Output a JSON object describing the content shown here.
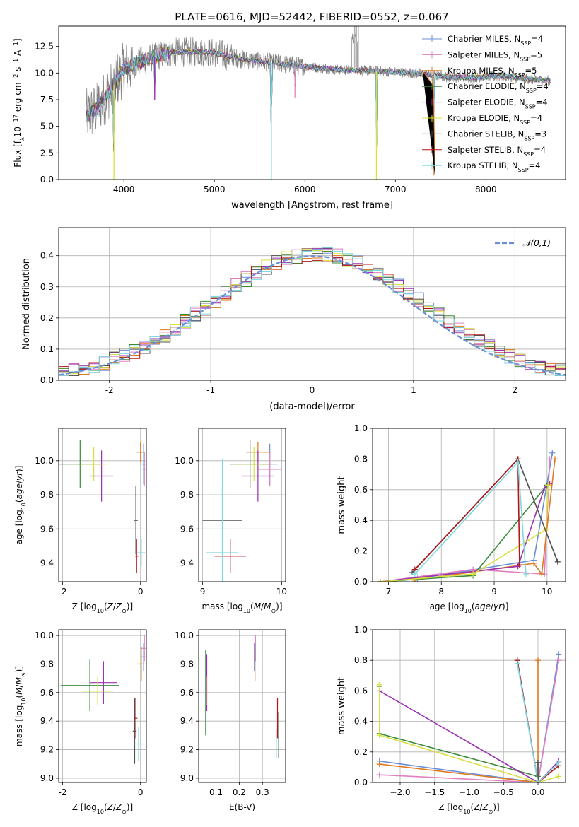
{
  "figure_title": "PLATE=0616, MJD=52442, FIBERID=0552, z=0.067",
  "series_colors": [
    "#6a8fd8",
    "#e080c0",
    "#e07a20",
    "#3a8a3a",
    "#9a30b0",
    "#d8e040",
    "#505050",
    "#b01818",
    "#80d8e0"
  ],
  "chart_data": [
    {
      "type": "line",
      "id": "spectrum",
      "xlabel": "wavelength [Angstrom, rest frame]",
      "ylabel": "Flux [f_λ10^-17 erg cm^-2 s^-1 A^-1]",
      "xlim": [
        3280,
        8880
      ],
      "ylim": [
        0,
        14.4
      ],
      "xticks": [
        4000,
        5000,
        6000,
        7000,
        8000
      ],
      "yticks": [
        0.0,
        2.5,
        5.0,
        7.5,
        10.0,
        12.5
      ],
      "ytick_labels": [
        "0.0",
        "2.5",
        "5.0",
        "7.5",
        "10.0",
        "12.5"
      ],
      "grid": false,
      "legend_position": "top-right",
      "legend": [
        "Chabrier MILES, N_SSP=4",
        "Salpeter MILES, N_SSP=5",
        "Kroupa MILES, N_SSP=5",
        "Chabrier ELODIE, N_SSP=4",
        "Salpeter ELODIE, N_SSP=4",
        "Kroupa ELODIE, N_SSP=4",
        "Chabrier STELIB, N_SSP=3",
        "Salpeter STELIB, N_SSP=4",
        "Kroupa STELIB, N_SSP=4"
      ],
      "continuum": {
        "x": [
          3580,
          3700,
          3800,
          3900,
          4000,
          4100,
          4300,
          4500,
          4800,
          5000,
          5300,
          5600,
          6000,
          6400,
          6800,
          7200,
          7600,
          7900,
          8200,
          8500,
          8700
        ],
        "y": [
          6.0,
          6.6,
          7.8,
          9.0,
          10.4,
          10.8,
          11.4,
          11.9,
          12.0,
          11.9,
          11.3,
          11.0,
          10.6,
          10.3,
          10.2,
          10.0,
          9.6,
          9.6,
          9.7,
          9.4,
          9.3
        ]
      },
      "absorption_lines": [
        {
          "x": 3890,
          "depth": 10.0
        },
        {
          "x": 4340,
          "depth": 4.0
        },
        {
          "x": 5630,
          "depth": 11.0
        },
        {
          "x": 5890,
          "depth": 3.0
        },
        {
          "x": 6790,
          "depth": 10.2
        },
        {
          "x": 7420,
          "depth": 9.4
        }
      ]
    },
    {
      "type": "histogram",
      "id": "residuals",
      "xlabel": "(data-model)/error",
      "ylabel": "Normed distribution",
      "xlim": [
        -2.5,
        2.5
      ],
      "ylim": [
        0,
        0.49
      ],
      "xticks": [
        -2,
        -1,
        0,
        1,
        2
      ],
      "yticks": [
        0.0,
        0.1,
        0.2,
        0.3,
        0.4
      ],
      "ytick_labels": [
        "0.0",
        "0.1",
        "0.2",
        "0.3",
        "0.4"
      ],
      "grid": true,
      "legend_position": "top-right",
      "gaussian_label": "𝒩(0,1)",
      "bin_width": 0.1
    },
    {
      "type": "scatter",
      "id": "age_vs_Z",
      "xlabel": "Z [log10(Z/Z⊙)]",
      "ylabel": "age [log10(age/yr)]",
      "xlim": [
        -2.1,
        0.15
      ],
      "ylim": [
        9.29,
        10.19
      ],
      "xticks": [
        -2,
        0
      ],
      "yticks": [
        9.4,
        9.6,
        9.8,
        10.0
      ],
      "ytick_labels": [
        "9.4",
        "9.6",
        "9.8",
        "10.0"
      ],
      "grid": true,
      "points": [
        {
          "s": 0,
          "x": 0.08,
          "y": 9.98,
          "ex": 0.05,
          "ey": 0.12
        },
        {
          "s": 1,
          "x": 0.1,
          "y": 9.95,
          "ex": 0.05,
          "ey": 0.1
        },
        {
          "s": 2,
          "x": 0.0,
          "y": 10.05,
          "ex": 0.1,
          "ey": 0.06
        },
        {
          "s": 3,
          "x": -1.55,
          "y": 9.98,
          "ex": 0.55,
          "ey": 0.14
        },
        {
          "s": 4,
          "x": -1.0,
          "y": 9.91,
          "ex": 0.3,
          "ey": 0.15
        },
        {
          "s": 5,
          "x": -1.2,
          "y": 9.98,
          "ex": 0.35,
          "ey": 0.1
        },
        {
          "s": 6,
          "x": -0.12,
          "y": 9.65,
          "ex": 0.05,
          "ey": 0.2
        },
        {
          "s": 7,
          "x": -0.1,
          "y": 9.44,
          "ex": 0.04,
          "ey": 0.1
        },
        {
          "s": 8,
          "x": 0.02,
          "y": 9.46,
          "ex": 0.1,
          "ey": 0.08
        }
      ]
    },
    {
      "type": "scatter",
      "id": "age_vs_mass",
      "xlabel": "mass [log10(M/M⊙)]",
      "ylabel": "",
      "xlim": [
        8.95,
        10.05
      ],
      "ylim": [
        9.29,
        10.19
      ],
      "xticks": [
        9,
        10
      ],
      "yticks": [
        9.4,
        9.6,
        9.8,
        10.0
      ],
      "ytick_labels": [
        "9.4",
        "9.6",
        "9.8",
        "10.0"
      ],
      "grid": true,
      "points": [
        {
          "s": 0,
          "x": 9.85,
          "y": 9.98,
          "ex": 0.1,
          "ey": 0.12
        },
        {
          "s": 1,
          "x": 9.85,
          "y": 9.95,
          "ex": 0.15,
          "ey": 0.1
        },
        {
          "s": 2,
          "x": 9.7,
          "y": 10.05,
          "ex": 0.15,
          "ey": 0.06
        },
        {
          "s": 3,
          "x": 9.6,
          "y": 9.98,
          "ex": 0.25,
          "ey": 0.14
        },
        {
          "s": 4,
          "x": 9.7,
          "y": 9.91,
          "ex": 0.2,
          "ey": 0.15
        },
        {
          "s": 5,
          "x": 9.65,
          "y": 9.98,
          "ex": 0.2,
          "ey": 0.1
        },
        {
          "s": 6,
          "x": 9.25,
          "y": 9.65,
          "ex": 0.25,
          "ey": 0.2
        },
        {
          "s": 7,
          "x": 9.35,
          "y": 9.44,
          "ex": 0.2,
          "ey": 0.1
        },
        {
          "s": 8,
          "x": 9.25,
          "y": 9.46,
          "ex": 0.2,
          "ey": 0.55
        }
      ]
    },
    {
      "type": "line",
      "id": "massweight_vs_age",
      "xlabel": "age [log10(age/yr)]",
      "ylabel": "mass weight",
      "xlim": [
        6.7,
        10.35
      ],
      "ylim": [
        0,
        1.0
      ],
      "xticks": [
        7,
        8,
        9,
        10
      ],
      "yticks": [
        0.0,
        0.2,
        0.4,
        0.6,
        0.8,
        1.0
      ],
      "ytick_labels": [
        "0.0",
        "0.2",
        "0.4",
        "0.6",
        "0.8",
        "1.0"
      ],
      "grid": true,
      "series": [
        {
          "s": 0,
          "x": [
            6.85,
            7.55,
            9.75,
            10.1
          ],
          "y": [
            0.0,
            0.02,
            0.14,
            0.84
          ]
        },
        {
          "s": 1,
          "x": [
            6.85,
            8.6,
            9.95,
            10.05
          ],
          "y": [
            0.0,
            0.08,
            0.05,
            0.8
          ]
        },
        {
          "s": 2,
          "x": [
            7.5,
            9.75,
            9.9,
            10.15
          ],
          "y": [
            0.01,
            0.12,
            0.05,
            0.8
          ]
        },
        {
          "s": 3,
          "x": [
            6.85,
            8.6,
            10.0
          ],
          "y": [
            0.0,
            0.04,
            0.63
          ]
        },
        {
          "s": 4,
          "x": [
            6.85,
            9.45,
            9.95,
            10.05
          ],
          "y": [
            0.0,
            0.1,
            0.61,
            0.64
          ]
        },
        {
          "s": 5,
          "x": [
            6.85,
            8.6,
            9.98,
            10.02
          ],
          "y": [
            0.0,
            0.05,
            0.34,
            0.63
          ]
        },
        {
          "s": 6,
          "x": [
            7.45,
            9.45,
            10.2
          ],
          "y": [
            0.06,
            0.8,
            0.13
          ]
        },
        {
          "s": 7,
          "x": [
            7.5,
            9.45,
            9.48
          ],
          "y": [
            0.08,
            0.8,
            0.11
          ]
        },
        {
          "s": 8,
          "x": [
            7.5,
            9.45,
            9.6
          ],
          "y": [
            0.05,
            0.78,
            0.05
          ]
        }
      ]
    },
    {
      "type": "scatter",
      "id": "mass_vs_Z",
      "xlabel": "Z [log10(Z/Z⊙)]",
      "ylabel": "mass [log10(M/M⊙)]",
      "xlim": [
        -2.1,
        0.15
      ],
      "ylim": [
        8.97,
        10.04
      ],
      "xticks": [
        -2,
        0
      ],
      "yticks": [
        9.0,
        9.2,
        9.4,
        9.6,
        9.8,
        10.0
      ],
      "ytick_labels": [
        "9.0",
        "9.2",
        "9.4",
        "9.6",
        "9.8",
        "10.0"
      ],
      "grid": true,
      "points": [
        {
          "s": 0,
          "x": 0.08,
          "y": 9.85,
          "ex": 0.08,
          "ey": 0.1
        },
        {
          "s": 1,
          "x": 0.1,
          "y": 9.91,
          "ex": 0.08,
          "ey": 0.09
        },
        {
          "s": 2,
          "x": 0.02,
          "y": 9.8,
          "ex": 0.1,
          "ey": 0.12
        },
        {
          "s": 3,
          "x": -1.3,
          "y": 9.65,
          "ex": 0.75,
          "ey": 0.18
        },
        {
          "s": 4,
          "x": -0.95,
          "y": 9.67,
          "ex": 0.35,
          "ey": 0.15
        },
        {
          "s": 5,
          "x": -1.1,
          "y": 9.61,
          "ex": 0.4,
          "ey": 0.1
        },
        {
          "s": 6,
          "x": -0.15,
          "y": 9.33,
          "ex": 0.05,
          "ey": 0.23
        },
        {
          "s": 7,
          "x": -0.12,
          "y": 9.42,
          "ex": 0.04,
          "ey": 0.14
        },
        {
          "s": 8,
          "x": -0.05,
          "y": 9.24,
          "ex": 0.15,
          "ey": 0.12
        }
      ]
    },
    {
      "type": "scatter",
      "id": "mass_vs_EBV",
      "xlabel": "E(B-V)",
      "ylabel": "",
      "xlim": [
        0.025,
        0.4
      ],
      "ylim": [
        8.97,
        10.04
      ],
      "xticks": [
        0.1,
        0.2,
        0.3
      ],
      "xtick_labels": [
        "0.1",
        "0.2",
        "0.3"
      ],
      "yticks": [
        9.0,
        9.2,
        9.4,
        9.6,
        9.8,
        10.0
      ],
      "ytick_labels": [
        "9.0",
        "9.2",
        "9.4",
        "9.6",
        "9.8",
        "10.0"
      ],
      "grid": true,
      "points": [
        {
          "s": 0,
          "x": 0.265,
          "y": 9.85,
          "ex": 0.002,
          "ey": 0.1
        },
        {
          "s": 1,
          "x": 0.27,
          "y": 9.91,
          "ex": 0.002,
          "ey": 0.09
        },
        {
          "s": 2,
          "x": 0.268,
          "y": 9.8,
          "ex": 0.002,
          "ey": 0.12
        },
        {
          "s": 3,
          "x": 0.055,
          "y": 9.6,
          "ex": 0.002,
          "ey": 0.3
        },
        {
          "s": 4,
          "x": 0.06,
          "y": 9.67,
          "ex": 0.002,
          "ey": 0.2
        },
        {
          "s": 5,
          "x": 0.058,
          "y": 9.61,
          "ex": 0.002,
          "ey": 0.1
        },
        {
          "s": 6,
          "x": 0.37,
          "y": 9.3,
          "ex": 0.002,
          "ey": 0.16
        },
        {
          "s": 7,
          "x": 0.365,
          "y": 9.42,
          "ex": 0.002,
          "ey": 0.14
        },
        {
          "s": 8,
          "x": 0.36,
          "y": 9.24,
          "ex": 0.002,
          "ey": 0.1
        }
      ]
    },
    {
      "type": "line",
      "id": "massweight_vs_Z",
      "xlabel": "Z [log10(Z/Z⊙)]",
      "ylabel": "mass weight",
      "xlim": [
        -2.4,
        0.4
      ],
      "ylim": [
        0,
        1.0
      ],
      "xticks": [
        -2.0,
        -1.5,
        -1.0,
        -0.5,
        0.0
      ],
      "xtick_labels": [
        "−2.0",
        "−1.5",
        "−1.0",
        "−0.5",
        "0.0"
      ],
      "yticks": [
        0.0,
        0.2,
        0.4,
        0.6,
        0.8,
        1.0
      ],
      "ytick_labels": [
        "0.0",
        "0.2",
        "0.4",
        "0.6",
        "0.8",
        "1.0"
      ],
      "grid": true,
      "series": [
        {
          "s": 0,
          "x": [
            -2.3,
            0.0,
            0.3
          ],
          "y": [
            0.14,
            0.0,
            0.84
          ]
        },
        {
          "s": 1,
          "x": [
            -2.3,
            0.0,
            0.3
          ],
          "y": [
            0.05,
            0.0,
            0.8
          ]
        },
        {
          "s": 2,
          "x": [
            -2.3,
            0.0,
            0.0
          ],
          "y": [
            0.12,
            0.0,
            0.8
          ]
        },
        {
          "s": 3,
          "x": [
            -2.3,
            -2.3,
            0.0
          ],
          "y": [
            0.63,
            0.32,
            0.04
          ]
        },
        {
          "s": 4,
          "x": [
            -2.3,
            0.0,
            0.3
          ],
          "y": [
            0.6,
            0.0,
            0.14
          ]
        },
        {
          "s": 5,
          "x": [
            -2.3,
            -2.3,
            0.0,
            0.3
          ],
          "y": [
            0.64,
            0.31,
            0.0,
            0.04
          ]
        },
        {
          "s": 6,
          "x": [
            -0.3,
            0.0,
            0.0
          ],
          "y": [
            0.8,
            0.0,
            0.13
          ]
        },
        {
          "s": 7,
          "x": [
            -0.3,
            0.0,
            0.3
          ],
          "y": [
            0.8,
            0.0,
            0.11
          ]
        },
        {
          "s": 8,
          "x": [
            -0.3,
            0.0,
            0.3
          ],
          "y": [
            0.78,
            0.0,
            0.13
          ]
        }
      ]
    }
  ]
}
